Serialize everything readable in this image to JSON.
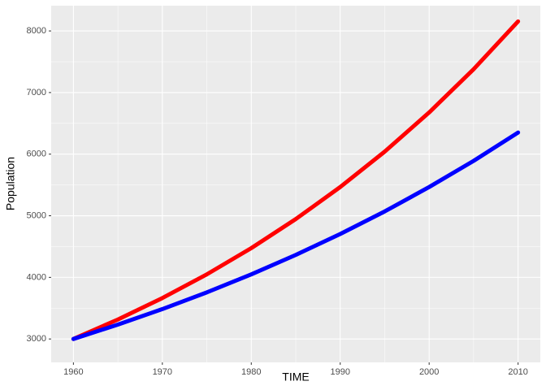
{
  "chart_data": {
    "type": "line",
    "x_label": "TIME",
    "y_label": "Population",
    "x": [
      1960,
      1965,
      1970,
      1975,
      1980,
      1985,
      1990,
      1995,
      2000,
      2005,
      2010
    ],
    "series": [
      {
        "color": "#ff0000",
        "values": [
          3000,
          3316,
          3664,
          4049,
          4475,
          4946,
          5466,
          6041,
          6677,
          7379,
          8155
        ]
      },
      {
        "color": "#0000ff",
        "values": [
          3000,
          3233,
          3485,
          3756,
          4049,
          4364,
          4704,
          5070,
          5466,
          5891,
          6351
        ]
      }
    ],
    "xlim": [
      1957.5,
      2012.5
    ],
    "xticks": [
      1960,
      1970,
      1980,
      1990,
      2000,
      2010
    ],
    "ylim": [
      2620,
      8410
    ],
    "yticks": [
      3000,
      4000,
      5000,
      6000,
      7000,
      8000
    ],
    "grid": true,
    "minor_grid": true
  }
}
